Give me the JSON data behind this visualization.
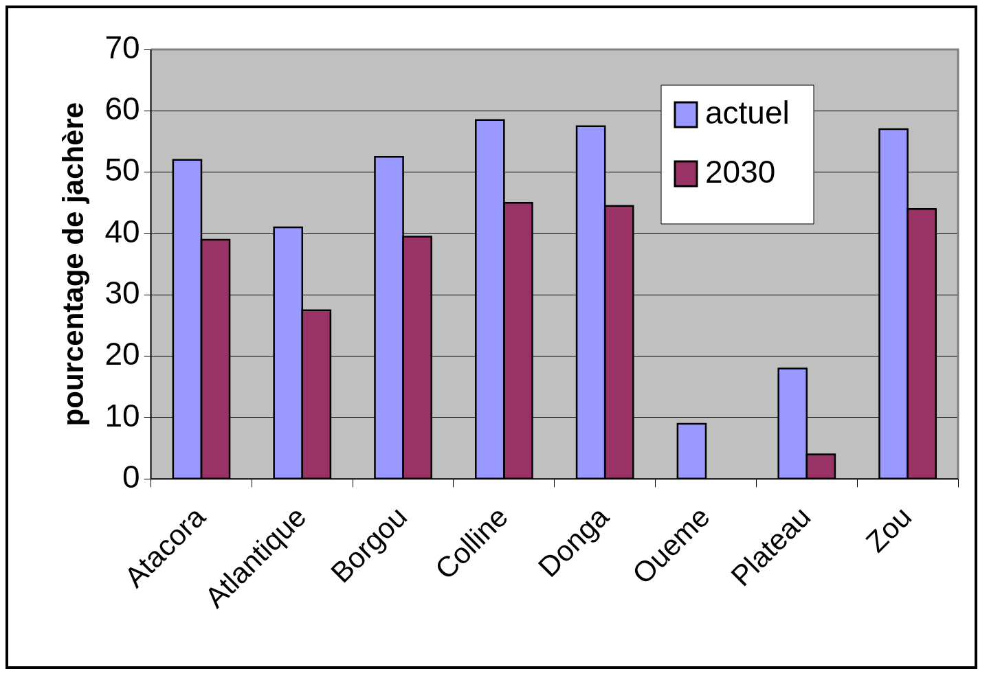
{
  "chart_data": {
    "type": "bar",
    "ylabel": "pourcentage de jachère",
    "categories": [
      "Atacora",
      "Atlantique",
      "Borgou",
      "Colline",
      "Donga",
      "Oueme",
      "Plateau",
      "Zou"
    ],
    "series": [
      {
        "name": "actuel",
        "color": "#9999ff",
        "values": [
          52,
          41,
          52.5,
          58.5,
          57.5,
          9,
          18,
          57
        ]
      },
      {
        "name": "2030",
        "color": "#993366",
        "values": [
          39,
          27.5,
          39.5,
          45,
          44.5,
          null,
          4,
          44
        ]
      }
    ],
    "ylim": [
      0,
      70
    ],
    "yticks": [
      0,
      10,
      20,
      30,
      40,
      50,
      60,
      70
    ],
    "grid": "y",
    "legend": "top right"
  }
}
